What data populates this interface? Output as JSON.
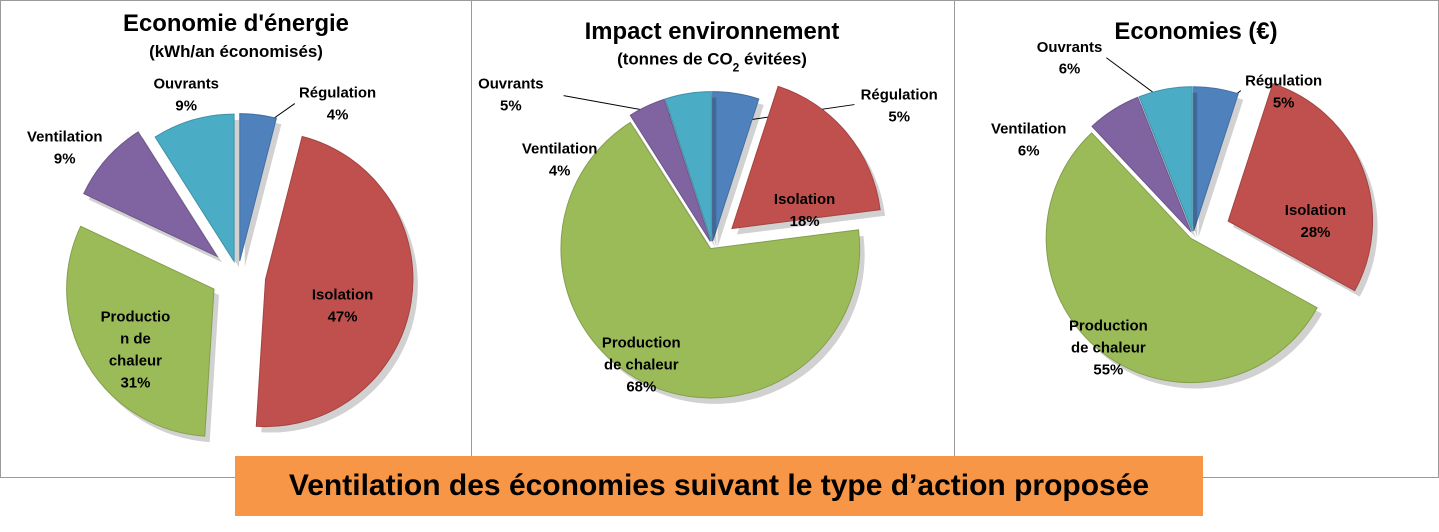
{
  "caption": "Ventilation des économies suivant le type d’action proposée",
  "colors": {
    "Régulation": "#4f81bd",
    "Isolation": "#c0504d",
    "Production de chaleur": "#9bbb59",
    "Ventilation": "#8064a2",
    "Ouvrants": "#4bacc6"
  },
  "chart_data": [
    {
      "type": "pie",
      "title": "Economie d'énergie",
      "subtitle": "(kWh/an économisés)",
      "slices": [
        {
          "name": "Régulation",
          "value": 4,
          "label": [
            "Régulation",
            "4%"
          ]
        },
        {
          "name": "Isolation",
          "value": 47,
          "label": [
            "Isolation",
            "47%"
          ]
        },
        {
          "name": "Production de chaleur",
          "value": 31,
          "label": [
            "Productio",
            "n de",
            "chaleur",
            "31%"
          ]
        },
        {
          "name": "Ventilation",
          "value": 9,
          "label": [
            "Ventilation",
            "9%"
          ]
        },
        {
          "name": "Ouvrants",
          "value": 9,
          "label": [
            "Ouvrants",
            "9%"
          ]
        }
      ]
    },
    {
      "type": "pie",
      "title": "Impact environnement",
      "subtitle_parts": [
        "(tonnes de CO",
        "2",
        " évitées)"
      ],
      "slices": [
        {
          "name": "Régulation",
          "value": 5,
          "label": [
            "Régulation",
            "5%"
          ]
        },
        {
          "name": "Isolation",
          "value": 18,
          "label": [
            "Isolation",
            "18%"
          ]
        },
        {
          "name": "Production de chaleur",
          "value": 68,
          "label": [
            "Production",
            "de chaleur",
            "68%"
          ]
        },
        {
          "name": "Ventilation",
          "value": 4,
          "label": [
            "Ventilation",
            "4%"
          ]
        },
        {
          "name": "Ouvrants",
          "value": 5,
          "label": [
            "Ouvrants",
            "5%"
          ]
        }
      ]
    },
    {
      "type": "pie",
      "title": "Economies (€)",
      "slices": [
        {
          "name": "Régulation",
          "value": 5,
          "label": [
            "Régulation",
            "5%"
          ]
        },
        {
          "name": "Isolation",
          "value": 28,
          "label": [
            "Isolation",
            "28%"
          ]
        },
        {
          "name": "Production de chaleur",
          "value": 55,
          "label": [
            "Production",
            "de chaleur",
            "55%"
          ]
        },
        {
          "name": "Ventilation",
          "value": 6,
          "label": [
            "Ventilation",
            "6%"
          ]
        },
        {
          "name": "Ouvrants",
          "value": 6,
          "label": [
            "Ouvrants",
            "6%"
          ]
        }
      ]
    }
  ]
}
